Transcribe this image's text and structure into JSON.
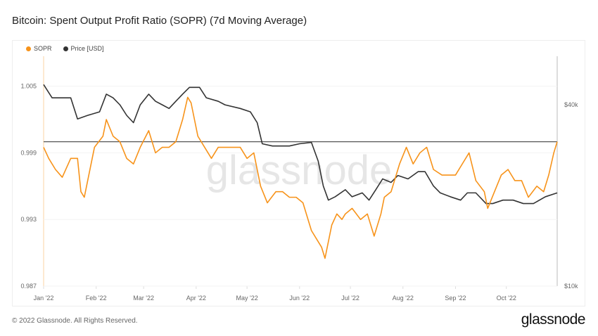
{
  "title": "Bitcoin: Spent Output Profit Ratio (SOPR) (7d Moving Average)",
  "footer": "© 2022 Glassnode. All Rights Reserved.",
  "logo": "glassnode",
  "watermark": "glassnode",
  "colors": {
    "sopr": "#f7931a",
    "price": "#333333",
    "baseline": "#555555"
  },
  "chart_data": {
    "type": "line",
    "title": "Bitcoin: Spent Output Profit Ratio (SOPR) (7d Moving Average)",
    "legend": {
      "placement": "top-left",
      "entries": [
        "SOPR",
        "Price [USD]"
      ]
    },
    "x_ticks": [
      "Jan '22",
      "Feb '22",
      "Mar '22",
      "Apr '22",
      "May '22",
      "Jun '22",
      "Jul '22",
      "Aug '22",
      "Sep '22",
      "Oct '22"
    ],
    "x_tick_dates": [
      "2022-01-01",
      "2022-02-01",
      "2022-03-01",
      "2022-04-01",
      "2022-05-01",
      "2022-06-01",
      "2022-07-01",
      "2022-08-01",
      "2022-09-01",
      "2022-10-01"
    ],
    "xlim": [
      "2022-01-01",
      "2022-10-31"
    ],
    "y_left": {
      "ticks": [
        "1.005",
        "0.999",
        "0.993",
        "0.987"
      ],
      "tick_values": [
        1.005,
        0.999,
        0.993,
        0.987
      ],
      "ylim": [
        0.987,
        1.0077
      ],
      "reference_line": 1.0
    },
    "y_right": {
      "scale": "log",
      "ticks": [
        "$40k",
        "$10k"
      ],
      "tick_values": [
        40000,
        10000
      ],
      "ylim": [
        10000,
        58000
      ]
    },
    "grid": false,
    "series": [
      {
        "name": "SOPR",
        "axis": "left",
        "points": [
          [
            "2022-01-01",
            0.9995
          ],
          [
            "2022-01-04",
            0.9985
          ],
          [
            "2022-01-08",
            0.9975
          ],
          [
            "2022-01-12",
            0.9968
          ],
          [
            "2022-01-17",
            0.9985
          ],
          [
            "2022-01-21",
            0.9985
          ],
          [
            "2022-01-23",
            0.9955
          ],
          [
            "2022-01-25",
            0.995
          ],
          [
            "2022-01-27",
            0.9965
          ],
          [
            "2022-01-31",
            0.9995
          ],
          [
            "2022-02-05",
            1.0005
          ],
          [
            "2022-02-07",
            1.002
          ],
          [
            "2022-02-11",
            1.0005
          ],
          [
            "2022-02-15",
            1.0
          ],
          [
            "2022-02-19",
            0.9985
          ],
          [
            "2022-02-23",
            0.998
          ],
          [
            "2022-02-27",
            0.9995
          ],
          [
            "2022-03-04",
            1.001
          ],
          [
            "2022-03-08",
            0.999
          ],
          [
            "2022-03-12",
            0.9995
          ],
          [
            "2022-03-16",
            0.9995
          ],
          [
            "2022-03-20",
            1.0
          ],
          [
            "2022-03-24",
            1.002
          ],
          [
            "2022-03-27",
            1.004
          ],
          [
            "2022-03-29",
            1.0035
          ],
          [
            "2022-04-02",
            1.0005
          ],
          [
            "2022-04-06",
            0.9995
          ],
          [
            "2022-04-10",
            0.9985
          ],
          [
            "2022-04-14",
            0.9995
          ],
          [
            "2022-04-18",
            0.9995
          ],
          [
            "2022-04-23",
            0.9995
          ],
          [
            "2022-04-27",
            0.9995
          ],
          [
            "2022-05-01",
            0.9985
          ],
          [
            "2022-05-05",
            0.999
          ],
          [
            "2022-05-09",
            0.996
          ],
          [
            "2022-05-13",
            0.9945
          ],
          [
            "2022-05-18",
            0.9955
          ],
          [
            "2022-05-22",
            0.9955
          ],
          [
            "2022-05-26",
            0.995
          ],
          [
            "2022-05-30",
            0.995
          ],
          [
            "2022-06-03",
            0.9945
          ],
          [
            "2022-06-06",
            0.993
          ],
          [
            "2022-06-08",
            0.992
          ],
          [
            "2022-06-12",
            0.991
          ],
          [
            "2022-06-14",
            0.9905
          ],
          [
            "2022-06-16",
            0.9895
          ],
          [
            "2022-06-18",
            0.991
          ],
          [
            "2022-06-20",
            0.9925
          ],
          [
            "2022-06-23",
            0.9935
          ],
          [
            "2022-06-26",
            0.993
          ],
          [
            "2022-06-28",
            0.9935
          ],
          [
            "2022-07-02",
            0.994
          ],
          [
            "2022-07-07",
            0.993
          ],
          [
            "2022-07-11",
            0.9935
          ],
          [
            "2022-07-15",
            0.9915
          ],
          [
            "2022-07-19",
            0.9935
          ],
          [
            "2022-07-21",
            0.995
          ],
          [
            "2022-07-25",
            0.9955
          ],
          [
            "2022-07-30",
            0.998
          ],
          [
            "2022-08-03",
            0.9995
          ],
          [
            "2022-08-07",
            0.998
          ],
          [
            "2022-08-11",
            0.999
          ],
          [
            "2022-08-15",
            0.9995
          ],
          [
            "2022-08-19",
            0.9975
          ],
          [
            "2022-08-24",
            0.997
          ],
          [
            "2022-08-28",
            0.997
          ],
          [
            "2022-09-01",
            0.997
          ],
          [
            "2022-09-05",
            0.998
          ],
          [
            "2022-09-09",
            0.999
          ],
          [
            "2022-09-13",
            0.9965
          ],
          [
            "2022-09-18",
            0.9955
          ],
          [
            "2022-09-20",
            0.994
          ],
          [
            "2022-09-24",
            0.9955
          ],
          [
            "2022-09-28",
            0.997
          ],
          [
            "2022-10-02",
            0.9975
          ],
          [
            "2022-10-06",
            0.9965
          ],
          [
            "2022-10-10",
            0.9965
          ],
          [
            "2022-10-14",
            0.995
          ],
          [
            "2022-10-19",
            0.996
          ],
          [
            "2022-10-23",
            0.9955
          ],
          [
            "2022-10-26",
            0.997
          ],
          [
            "2022-10-29",
            0.999
          ],
          [
            "2022-10-31",
            1.0
          ]
        ]
      },
      {
        "name": "Price [USD]",
        "axis": "right",
        "points": [
          [
            "2022-01-01",
            46700
          ],
          [
            "2022-01-06",
            42200
          ],
          [
            "2022-01-17",
            42200
          ],
          [
            "2022-01-21",
            35900
          ],
          [
            "2022-01-27",
            36900
          ],
          [
            "2022-02-03",
            37900
          ],
          [
            "2022-02-07",
            43400
          ],
          [
            "2022-02-11",
            42200
          ],
          [
            "2022-02-15",
            40000
          ],
          [
            "2022-02-19",
            36900
          ],
          [
            "2022-02-23",
            34900
          ],
          [
            "2022-02-27",
            40000
          ],
          [
            "2022-03-04",
            43400
          ],
          [
            "2022-03-08",
            41100
          ],
          [
            "2022-03-12",
            40000
          ],
          [
            "2022-03-16",
            38900
          ],
          [
            "2022-03-20",
            41100
          ],
          [
            "2022-03-24",
            43400
          ],
          [
            "2022-03-28",
            45700
          ],
          [
            "2022-04-03",
            45700
          ],
          [
            "2022-04-07",
            42200
          ],
          [
            "2022-04-14",
            41100
          ],
          [
            "2022-04-18",
            40000
          ],
          [
            "2022-04-27",
            38900
          ],
          [
            "2022-05-03",
            37900
          ],
          [
            "2022-05-07",
            34900
          ],
          [
            "2022-05-10",
            29700
          ],
          [
            "2022-05-16",
            29200
          ],
          [
            "2022-05-20",
            29200
          ],
          [
            "2022-05-26",
            29200
          ],
          [
            "2022-06-01",
            29700
          ],
          [
            "2022-06-08",
            30000
          ],
          [
            "2022-06-12",
            26000
          ],
          [
            "2022-06-15",
            21500
          ],
          [
            "2022-06-18",
            19300
          ],
          [
            "2022-06-22",
            19800
          ],
          [
            "2022-06-28",
            20900
          ],
          [
            "2022-07-02",
            19800
          ],
          [
            "2022-07-08",
            20400
          ],
          [
            "2022-07-12",
            19300
          ],
          [
            "2022-07-16",
            20900
          ],
          [
            "2022-07-20",
            22700
          ],
          [
            "2022-07-25",
            22100
          ],
          [
            "2022-07-29",
            23300
          ],
          [
            "2022-08-04",
            22700
          ],
          [
            "2022-08-10",
            24000
          ],
          [
            "2022-08-14",
            24000
          ],
          [
            "2022-08-19",
            21500
          ],
          [
            "2022-08-23",
            20400
          ],
          [
            "2022-08-29",
            19800
          ],
          [
            "2022-09-04",
            19300
          ],
          [
            "2022-09-08",
            20400
          ],
          [
            "2022-09-13",
            20400
          ],
          [
            "2022-09-19",
            18800
          ],
          [
            "2022-09-23",
            18800
          ],
          [
            "2022-09-29",
            19300
          ],
          [
            "2022-10-05",
            19300
          ],
          [
            "2022-10-11",
            18800
          ],
          [
            "2022-10-17",
            18800
          ],
          [
            "2022-10-24",
            19800
          ],
          [
            "2022-10-31",
            20400
          ]
        ]
      }
    ]
  }
}
